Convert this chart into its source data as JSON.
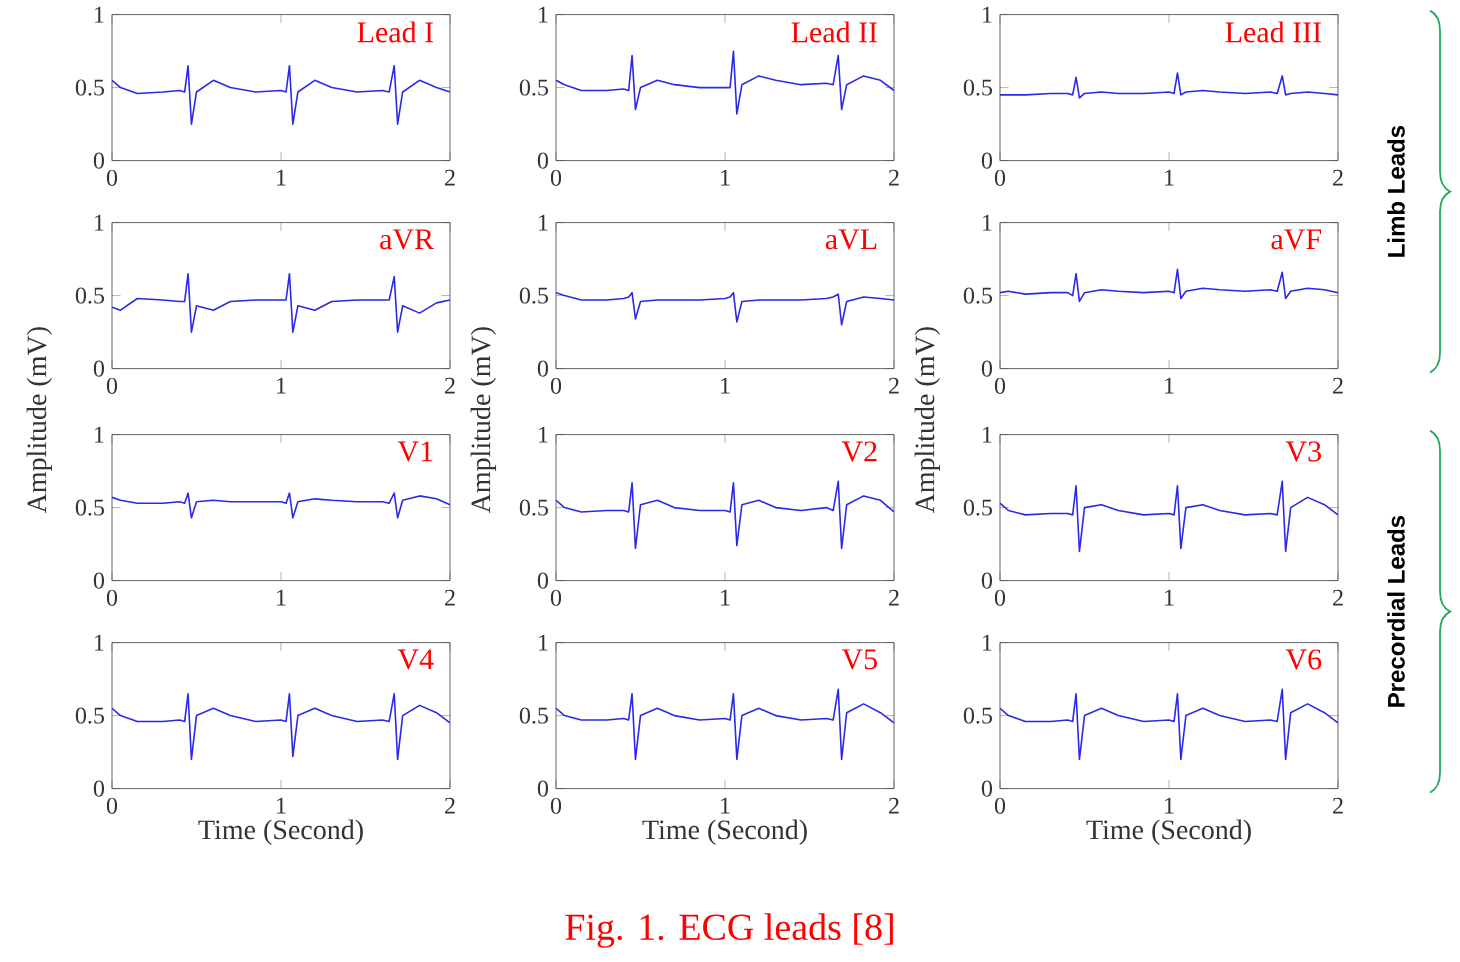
{
  "chart_data": [
    {
      "type": "line",
      "title": "Lead I",
      "color": "#2a2ae6",
      "xlim": [
        0,
        2
      ],
      "ylim": [
        0,
        1
      ],
      "xticks": [
        0,
        1,
        2
      ],
      "yticks": [
        0,
        0.5,
        1
      ],
      "x": [
        0,
        0.05,
        0.15,
        0.3,
        0.4,
        0.43,
        0.45,
        0.47,
        0.5,
        0.6,
        0.7,
        0.85,
        1.0,
        1.03,
        1.05,
        1.07,
        1.1,
        1.2,
        1.3,
        1.45,
        1.6,
        1.64,
        1.67,
        1.69,
        1.72,
        1.82,
        1.92,
        2.0
      ],
      "values": [
        0.55,
        0.5,
        0.46,
        0.47,
        0.48,
        0.47,
        0.65,
        0.25,
        0.47,
        0.55,
        0.5,
        0.47,
        0.48,
        0.47,
        0.65,
        0.25,
        0.47,
        0.55,
        0.5,
        0.47,
        0.48,
        0.47,
        0.65,
        0.25,
        0.47,
        0.55,
        0.5,
        0.47
      ]
    },
    {
      "type": "line",
      "title": "Lead II",
      "color": "#2a2ae6",
      "xlim": [
        0,
        2
      ],
      "ylim": [
        0,
        1
      ],
      "xticks": [
        0,
        1,
        2
      ],
      "yticks": [
        0,
        0.5,
        1
      ],
      "x": [
        0,
        0.05,
        0.15,
        0.3,
        0.4,
        0.43,
        0.45,
        0.47,
        0.5,
        0.6,
        0.7,
        0.85,
        1.0,
        1.03,
        1.05,
        1.07,
        1.1,
        1.2,
        1.3,
        1.45,
        1.6,
        1.64,
        1.67,
        1.69,
        1.72,
        1.82,
        1.92,
        2.0
      ],
      "values": [
        0.55,
        0.52,
        0.48,
        0.48,
        0.49,
        0.48,
        0.72,
        0.35,
        0.5,
        0.55,
        0.52,
        0.5,
        0.5,
        0.5,
        0.75,
        0.32,
        0.52,
        0.58,
        0.55,
        0.52,
        0.53,
        0.52,
        0.72,
        0.35,
        0.52,
        0.58,
        0.55,
        0.48
      ]
    },
    {
      "type": "line",
      "title": "Lead III",
      "color": "#2a2ae6",
      "xlim": [
        0,
        2
      ],
      "ylim": [
        0,
        1
      ],
      "xticks": [
        0,
        1,
        2
      ],
      "yticks": [
        0,
        0.5,
        1
      ],
      "annotations": [
        "Limb Leads"
      ],
      "x": [
        0,
        0.05,
        0.15,
        0.3,
        0.4,
        0.43,
        0.45,
        0.47,
        0.5,
        0.6,
        0.7,
        0.85,
        1.0,
        1.03,
        1.05,
        1.07,
        1.1,
        1.2,
        1.3,
        1.45,
        1.6,
        1.64,
        1.67,
        1.69,
        1.72,
        1.82,
        1.92,
        2.0
      ],
      "values": [
        0.45,
        0.45,
        0.45,
        0.46,
        0.46,
        0.45,
        0.57,
        0.43,
        0.46,
        0.47,
        0.46,
        0.46,
        0.47,
        0.46,
        0.6,
        0.45,
        0.47,
        0.48,
        0.47,
        0.46,
        0.47,
        0.46,
        0.58,
        0.45,
        0.46,
        0.47,
        0.46,
        0.45
      ]
    },
    {
      "type": "line",
      "title": "aVR",
      "ylabel": "Amplitude (mV)",
      "color": "#2a2ae6",
      "xlim": [
        0,
        2
      ],
      "ylim": [
        0,
        1
      ],
      "xticks": [
        0,
        1,
        2
      ],
      "yticks": [
        0,
        0.5,
        1
      ],
      "x": [
        0,
        0.05,
        0.15,
        0.3,
        0.4,
        0.43,
        0.45,
        0.47,
        0.5,
        0.6,
        0.7,
        0.85,
        1.0,
        1.03,
        1.05,
        1.07,
        1.1,
        1.2,
        1.3,
        1.45,
        1.6,
        1.64,
        1.67,
        1.69,
        1.72,
        1.82,
        1.92,
        2.0
      ],
      "values": [
        0.42,
        0.4,
        0.48,
        0.47,
        0.46,
        0.46,
        0.65,
        0.25,
        0.43,
        0.4,
        0.46,
        0.47,
        0.47,
        0.47,
        0.65,
        0.25,
        0.43,
        0.4,
        0.46,
        0.47,
        0.47,
        0.47,
        0.63,
        0.25,
        0.43,
        0.38,
        0.45,
        0.47
      ]
    },
    {
      "type": "line",
      "title": "aVL",
      "ylabel": "Amplitude (mV)",
      "color": "#2a2ae6",
      "xlim": [
        0,
        2
      ],
      "ylim": [
        0,
        1
      ],
      "xticks": [
        0,
        1,
        2
      ],
      "yticks": [
        0,
        0.5,
        1
      ],
      "x": [
        0,
        0.05,
        0.15,
        0.3,
        0.4,
        0.43,
        0.45,
        0.47,
        0.5,
        0.6,
        0.7,
        0.85,
        1.0,
        1.03,
        1.05,
        1.07,
        1.1,
        1.2,
        1.3,
        1.45,
        1.6,
        1.64,
        1.67,
        1.69,
        1.72,
        1.82,
        1.92,
        2.0
      ],
      "values": [
        0.52,
        0.5,
        0.47,
        0.47,
        0.48,
        0.49,
        0.52,
        0.34,
        0.46,
        0.47,
        0.47,
        0.47,
        0.48,
        0.49,
        0.52,
        0.32,
        0.46,
        0.47,
        0.47,
        0.47,
        0.48,
        0.49,
        0.51,
        0.3,
        0.46,
        0.49,
        0.48,
        0.47
      ]
    },
    {
      "type": "line",
      "title": "aVF",
      "ylabel": "Amplitude (mV)",
      "color": "#2a2ae6",
      "xlim": [
        0,
        2
      ],
      "ylim": [
        0,
        1
      ],
      "xticks": [
        0,
        1,
        2
      ],
      "yticks": [
        0,
        0.5,
        1
      ],
      "x": [
        0,
        0.05,
        0.15,
        0.3,
        0.4,
        0.43,
        0.45,
        0.47,
        0.5,
        0.6,
        0.7,
        0.85,
        1.0,
        1.03,
        1.05,
        1.07,
        1.1,
        1.2,
        1.3,
        1.45,
        1.6,
        1.64,
        1.67,
        1.69,
        1.72,
        1.82,
        1.92,
        2.0
      ],
      "values": [
        0.52,
        0.53,
        0.51,
        0.52,
        0.52,
        0.5,
        0.65,
        0.46,
        0.52,
        0.54,
        0.53,
        0.52,
        0.53,
        0.52,
        0.68,
        0.48,
        0.53,
        0.55,
        0.54,
        0.53,
        0.54,
        0.53,
        0.66,
        0.48,
        0.53,
        0.55,
        0.54,
        0.52
      ]
    },
    {
      "type": "line",
      "title": "V1",
      "color": "#2a2ae6",
      "xlim": [
        0,
        2
      ],
      "ylim": [
        0,
        1
      ],
      "xticks": [
        0,
        1,
        2
      ],
      "yticks": [
        0,
        0.5,
        1
      ],
      "x": [
        0,
        0.05,
        0.15,
        0.3,
        0.4,
        0.43,
        0.45,
        0.47,
        0.5,
        0.6,
        0.7,
        0.85,
        1.0,
        1.03,
        1.05,
        1.07,
        1.1,
        1.2,
        1.3,
        1.45,
        1.6,
        1.64,
        1.67,
        1.69,
        1.72,
        1.82,
        1.92,
        2.0
      ],
      "values": [
        0.57,
        0.55,
        0.53,
        0.53,
        0.54,
        0.53,
        0.6,
        0.43,
        0.54,
        0.55,
        0.54,
        0.54,
        0.54,
        0.53,
        0.6,
        0.43,
        0.54,
        0.56,
        0.55,
        0.54,
        0.54,
        0.53,
        0.6,
        0.43,
        0.55,
        0.58,
        0.56,
        0.52
      ]
    },
    {
      "type": "line",
      "title": "V2",
      "color": "#2a2ae6",
      "xlim": [
        0,
        2
      ],
      "ylim": [
        0,
        1
      ],
      "xticks": [
        0,
        1,
        2
      ],
      "yticks": [
        0,
        0.5,
        1
      ],
      "x": [
        0,
        0.05,
        0.15,
        0.3,
        0.4,
        0.43,
        0.45,
        0.47,
        0.5,
        0.6,
        0.7,
        0.85,
        1.0,
        1.03,
        1.05,
        1.07,
        1.1,
        1.2,
        1.3,
        1.45,
        1.6,
        1.64,
        1.67,
        1.69,
        1.72,
        1.82,
        1.92,
        2.0
      ],
      "values": [
        0.55,
        0.5,
        0.47,
        0.48,
        0.48,
        0.47,
        0.67,
        0.22,
        0.52,
        0.55,
        0.5,
        0.48,
        0.48,
        0.47,
        0.67,
        0.24,
        0.52,
        0.55,
        0.5,
        0.48,
        0.5,
        0.48,
        0.68,
        0.22,
        0.52,
        0.58,
        0.55,
        0.47
      ]
    },
    {
      "type": "line",
      "title": "V3",
      "color": "#2a2ae6",
      "xlim": [
        0,
        2
      ],
      "ylim": [
        0,
        1
      ],
      "xticks": [
        0,
        1,
        2
      ],
      "yticks": [
        0,
        0.5,
        1
      ],
      "annotations": [
        "Precordial  Leads"
      ],
      "x": [
        0,
        0.05,
        0.15,
        0.3,
        0.4,
        0.43,
        0.45,
        0.47,
        0.5,
        0.6,
        0.7,
        0.85,
        1.0,
        1.03,
        1.05,
        1.07,
        1.1,
        1.2,
        1.3,
        1.45,
        1.6,
        1.64,
        1.67,
        1.69,
        1.72,
        1.82,
        1.92,
        2.0
      ],
      "values": [
        0.53,
        0.48,
        0.45,
        0.46,
        0.46,
        0.45,
        0.65,
        0.2,
        0.5,
        0.52,
        0.48,
        0.45,
        0.46,
        0.45,
        0.65,
        0.22,
        0.5,
        0.52,
        0.48,
        0.45,
        0.46,
        0.45,
        0.68,
        0.2,
        0.5,
        0.57,
        0.52,
        0.45
      ]
    },
    {
      "type": "line",
      "title": "V4",
      "xlabel": "Time (Second)",
      "color": "#2a2ae6",
      "xlim": [
        0,
        2
      ],
      "ylim": [
        0,
        1
      ],
      "xticks": [
        0,
        1,
        2
      ],
      "yticks": [
        0,
        0.5,
        1
      ],
      "x": [
        0,
        0.05,
        0.15,
        0.3,
        0.4,
        0.43,
        0.45,
        0.47,
        0.5,
        0.6,
        0.7,
        0.85,
        1.0,
        1.03,
        1.05,
        1.07,
        1.1,
        1.2,
        1.3,
        1.45,
        1.6,
        1.64,
        1.67,
        1.69,
        1.72,
        1.82,
        1.92,
        2.0
      ],
      "values": [
        0.55,
        0.5,
        0.46,
        0.46,
        0.47,
        0.46,
        0.65,
        0.2,
        0.5,
        0.55,
        0.5,
        0.46,
        0.47,
        0.46,
        0.65,
        0.22,
        0.5,
        0.55,
        0.5,
        0.46,
        0.47,
        0.46,
        0.65,
        0.2,
        0.5,
        0.57,
        0.52,
        0.45
      ]
    },
    {
      "type": "line",
      "title": "V5",
      "xlabel": "Time (Second)",
      "color": "#2a2ae6",
      "xlim": [
        0,
        2
      ],
      "ylim": [
        0,
        1
      ],
      "xticks": [
        0,
        1,
        2
      ],
      "yticks": [
        0,
        0.5,
        1
      ],
      "annotations": [
        "Fig. 1. ECG leads [8]"
      ],
      "x": [
        0,
        0.05,
        0.15,
        0.3,
        0.4,
        0.43,
        0.45,
        0.47,
        0.5,
        0.6,
        0.7,
        0.85,
        1.0,
        1.03,
        1.05,
        1.07,
        1.1,
        1.2,
        1.3,
        1.45,
        1.6,
        1.64,
        1.67,
        1.69,
        1.72,
        1.82,
        1.92,
        2.0
      ],
      "values": [
        0.55,
        0.5,
        0.47,
        0.47,
        0.48,
        0.47,
        0.65,
        0.2,
        0.5,
        0.55,
        0.5,
        0.47,
        0.48,
        0.47,
        0.65,
        0.2,
        0.5,
        0.55,
        0.5,
        0.47,
        0.48,
        0.47,
        0.68,
        0.2,
        0.52,
        0.58,
        0.52,
        0.45
      ]
    },
    {
      "type": "line",
      "title": "V6",
      "xlabel": "Time (Second)",
      "color": "#2a2ae6",
      "xlim": [
        0,
        2
      ],
      "ylim": [
        0,
        1
      ],
      "xticks": [
        0,
        1,
        2
      ],
      "yticks": [
        0,
        0.5,
        1
      ],
      "x": [
        0,
        0.05,
        0.15,
        0.3,
        0.4,
        0.43,
        0.45,
        0.47,
        0.5,
        0.6,
        0.7,
        0.85,
        1.0,
        1.03,
        1.05,
        1.07,
        1.1,
        1.2,
        1.3,
        1.45,
        1.6,
        1.64,
        1.67,
        1.69,
        1.72,
        1.82,
        1.92,
        2.0
      ],
      "values": [
        0.55,
        0.5,
        0.46,
        0.46,
        0.47,
        0.46,
        0.65,
        0.2,
        0.5,
        0.55,
        0.5,
        0.46,
        0.47,
        0.46,
        0.65,
        0.2,
        0.5,
        0.55,
        0.5,
        0.46,
        0.47,
        0.46,
        0.68,
        0.2,
        0.52,
        0.58,
        0.52,
        0.45
      ]
    }
  ]
}
